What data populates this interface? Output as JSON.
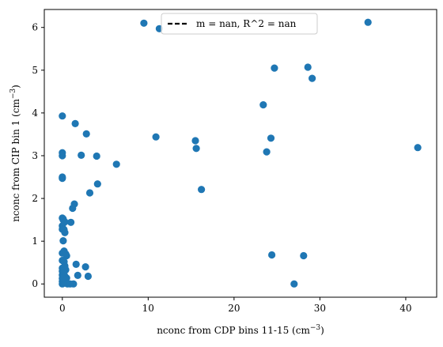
{
  "chart_data": {
    "type": "scatter",
    "xlabel": "nconc from CDP bins 11-15 (cm",
    "xlabel_sup": "−3",
    "xlabel_end": ")",
    "ylabel": "nconc from CIP bin 1 (cm",
    "ylabel_sup": "−3",
    "ylabel_end": ")",
    "xlim": [
      -2.1,
      43.6
    ],
    "ylim": [
      -0.31,
      6.42
    ],
    "xticks": [
      0,
      10,
      20,
      30,
      40
    ],
    "yticks": [
      0,
      1,
      2,
      3,
      4,
      5,
      6
    ],
    "grid": false,
    "legend_position": "top-center",
    "legend_entries": [
      {
        "label": "m = nan, R^2 = nan",
        "style": "dashed",
        "color": "#000000"
      }
    ],
    "marker_color": "#1f77b4",
    "series": [
      {
        "x": [
          9.5,
          11.3,
          35.6,
          28.6,
          24.7,
          29.1,
          23.4,
          24.3,
          23.8,
          41.4,
          15.5,
          15.6,
          10.9,
          16.2,
          24.4,
          28.1,
          27.0,
          0.0,
          0.0,
          0.0,
          0.0,
          0.0,
          0.0,
          1.5,
          2.8,
          2.2,
          4.0,
          6.3,
          4.1,
          3.2,
          1.4,
          1.2,
          0.1,
          0.1,
          0.3,
          0.0,
          0.0,
          0.2,
          0.3,
          0.1,
          0.0,
          0.2,
          0.5,
          0.4,
          0.2,
          0.0,
          0.3,
          0.0,
          0.4,
          0.1,
          0.0,
          0.2,
          0.3,
          0.5,
          0.1,
          0.0,
          0.2,
          0.4,
          0.0,
          0.6,
          0.3,
          0.1,
          0.0,
          0.2,
          1.0,
          1.6,
          1.8,
          1.3,
          2.7,
          3.0,
          0.9,
          0.1,
          0.0
        ],
        "y": [
          6.1,
          5.97,
          6.12,
          5.07,
          5.05,
          4.81,
          4.19,
          3.41,
          3.09,
          3.19,
          3.35,
          3.17,
          3.44,
          2.21,
          0.68,
          0.66,
          0.0,
          3.93,
          3.07,
          3.0,
          2.5,
          2.47,
          1.54,
          3.75,
          3.51,
          3.01,
          2.99,
          2.8,
          2.34,
          2.13,
          1.87,
          1.77,
          1.52,
          1.5,
          1.45,
          1.36,
          1.28,
          1.27,
          1.2,
          1.01,
          0.72,
          0.77,
          0.66,
          0.7,
          0.52,
          0.55,
          0.42,
          0.37,
          0.33,
          0.25,
          0.21,
          0.22,
          0.18,
          0.14,
          0.1,
          0.06,
          0.03,
          0.02,
          0.0,
          0.0,
          0.05,
          0.12,
          0.3,
          0.16,
          1.44,
          0.46,
          0.2,
          0.0,
          0.4,
          0.18,
          0.0,
          0.27,
          0.13
        ]
      }
    ]
  }
}
